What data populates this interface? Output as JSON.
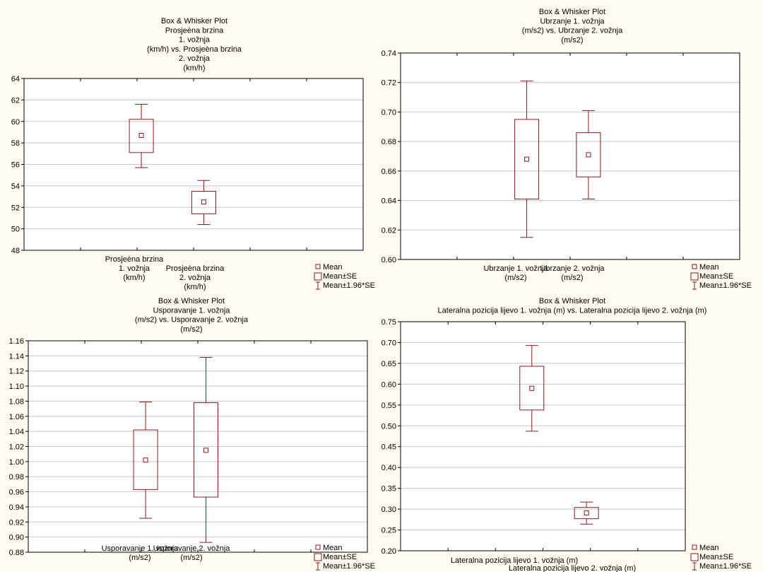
{
  "colors": {
    "panel_bg": "#fffbf0",
    "plot_bg": "#ffffff",
    "mark": "#8b1a1a",
    "axis": "#000000",
    "grid": "#c8c8c8"
  },
  "legend": {
    "mean": "Mean",
    "se": "Mean±SE",
    "ci": "Mean±1.96*SE"
  },
  "chart_data": [
    {
      "type": "box",
      "title_lines": [
        "Box & Whisker Plot",
        "Prosjeèna brzina",
        "1. vožnja",
        "(km/h) vs. Prosjeèna brzina",
        "2. vožnja",
        "(km/h)"
      ],
      "ylim": [
        48,
        64
      ],
      "yticks": [
        "48",
        "50",
        "52",
        "54",
        "56",
        "58",
        "60",
        "62",
        "64"
      ],
      "category_labels": [
        [
          "Prosjeèna brzina",
          "1. vožnja",
          "(km/h)"
        ],
        [
          "Prosjeèna brzina",
          "2. vožnja",
          "(km/h)"
        ]
      ],
      "boxes": [
        {
          "mean": 58.7,
          "se_low": 57.1,
          "se_high": 60.2,
          "ci_low": 55.7,
          "ci_high": 61.6
        },
        {
          "mean": 52.5,
          "se_low": 51.4,
          "se_high": 53.5,
          "ci_low": 50.4,
          "ci_high": 54.5
        }
      ]
    },
    {
      "type": "box",
      "title_lines": [
        "Box & Whisker Plot",
        "Ubrzanje 1. vožnja",
        "(m/s2) vs. Ubrzanje 2. vožnja",
        "(m/s2)"
      ],
      "ylim": [
        0.6,
        0.74
      ],
      "yticks": [
        "0.60",
        "0.62",
        "0.64",
        "0.66",
        "0.68",
        "0.70",
        "0.72",
        "0.74"
      ],
      "category_labels": [
        [
          "Ubrzanje 1. vožnja",
          "(m/s2)"
        ],
        [
          "Ubrzanje 2. vožnja",
          "(m/s2)"
        ]
      ],
      "boxes": [
        {
          "mean": 0.668,
          "se_low": 0.641,
          "se_high": 0.695,
          "ci_low": 0.615,
          "ci_high": 0.721
        },
        {
          "mean": 0.671,
          "se_low": 0.656,
          "se_high": 0.686,
          "ci_low": 0.641,
          "ci_high": 0.701
        }
      ]
    },
    {
      "type": "box",
      "title_lines": [
        "Box & Whisker Plot",
        "Usporavanje 1. vožnja",
        "(m/s2) vs. Usporavanje 2. vožnja",
        "(m/s2)"
      ],
      "ylim": [
        0.88,
        1.16
      ],
      "yticks": [
        "0.88",
        "0.90",
        "0.92",
        "0.94",
        "0.96",
        "0.98",
        "1.00",
        "1.02",
        "1.04",
        "1.06",
        "1.08",
        "1.10",
        "1.12",
        "1.14",
        "1.16"
      ],
      "category_labels": [
        [
          "Usporavanje 1. vožnja",
          "(m/s2)"
        ],
        [
          "Usporavanje 2. vožnja",
          "(m/s2)"
        ]
      ],
      "boxes": [
        {
          "mean": 1.002,
          "se_low": 0.963,
          "se_high": 1.042,
          "ci_low": 0.925,
          "ci_high": 1.079
        },
        {
          "mean": 1.015,
          "se_low": 0.953,
          "se_high": 1.078,
          "ci_low": 0.893,
          "ci_high": 1.138
        }
      ]
    },
    {
      "type": "box",
      "title_lines": [
        "Box & Whisker Plot",
        "Lateralna pozicija lijevo 1. vožnja (m) vs. Lateralna pozicija lijevo 2. vožnja (m)"
      ],
      "ylim": [
        0.2,
        0.75
      ],
      "yticks": [
        "0.20",
        "0.25",
        "0.30",
        "0.35",
        "0.40",
        "0.45",
        "0.50",
        "0.55",
        "0.60",
        "0.65",
        "0.70",
        "0.75"
      ],
      "category_labels": [
        [
          "Lateralna pozicija lijevo 1. vožnja (m)"
        ],
        [
          "Lateralna pozicija lijevo 2. vožnja (m)"
        ]
      ],
      "boxes": [
        {
          "mean": 0.59,
          "se_low": 0.538,
          "se_high": 0.643,
          "ci_low": 0.487,
          "ci_high": 0.693
        },
        {
          "mean": 0.291,
          "se_low": 0.277,
          "se_high": 0.304,
          "ci_low": 0.264,
          "ci_high": 0.317
        }
      ]
    }
  ]
}
